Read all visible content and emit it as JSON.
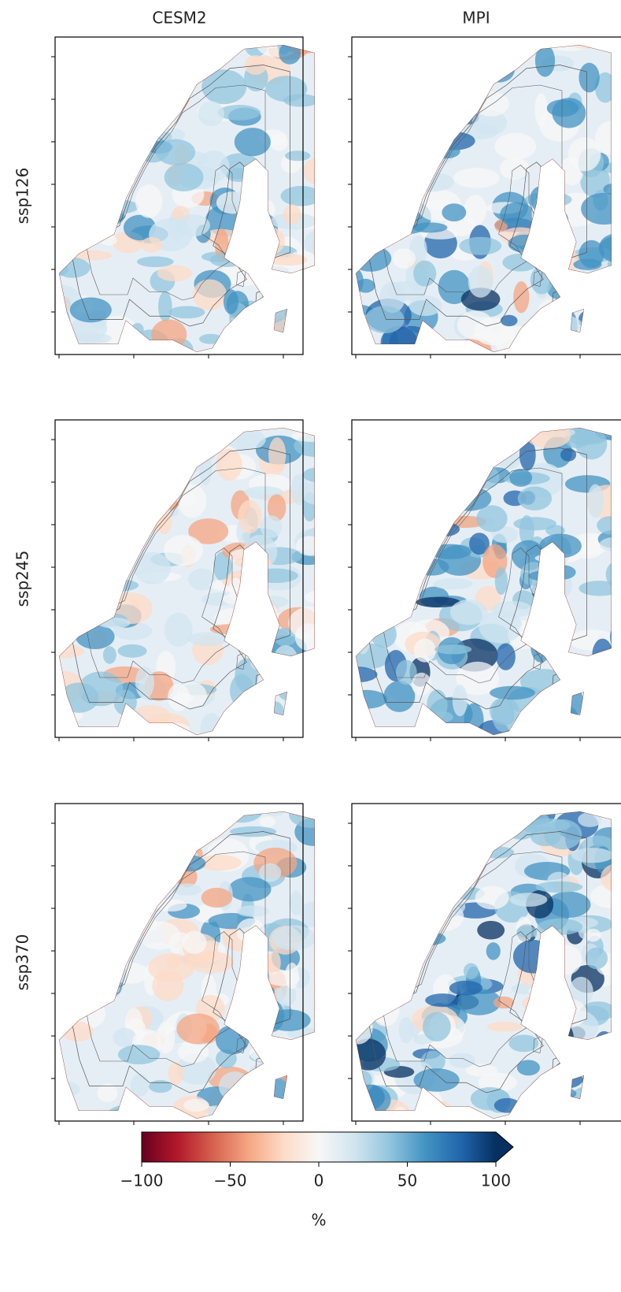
{
  "chart_data": {
    "type": "map-grid",
    "columns": [
      "CESM2",
      "MPI"
    ],
    "rows": [
      "ssp126",
      "ssp245",
      "ssp370"
    ],
    "colorbar": {
      "label": "%",
      "lim": [
        -100,
        100
      ],
      "ticks": [
        {
          "value": -100,
          "label": "−100"
        },
        {
          "value": -50,
          "label": "−50"
        },
        0,
        50,
        100
      ],
      "colors": [
        "#67001f",
        "#b2182b",
        "#d6604d",
        "#f4a582",
        "#fddbc7",
        "#f7f7f7",
        "#d1e5f0",
        "#92c5de",
        "#4393c3",
        "#2166ac",
        "#053061"
      ],
      "extend": "max"
    }
  }
}
